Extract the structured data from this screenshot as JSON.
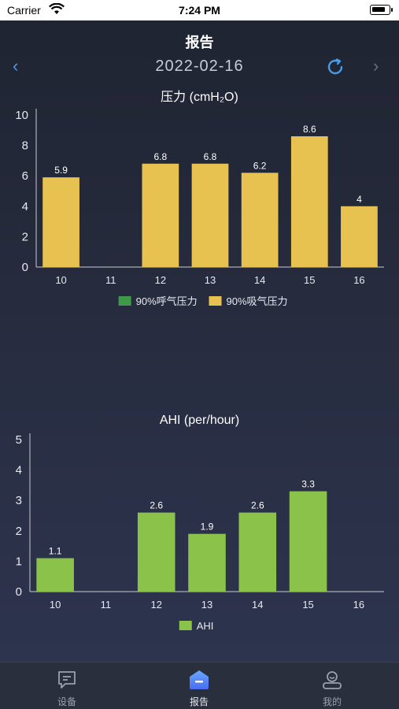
{
  "status_bar": {
    "carrier": "Carrier",
    "time": "7:24 PM"
  },
  "header": {
    "title": "报告",
    "date": "2022-02-16"
  },
  "colors": {
    "accent": "#4a9be8",
    "pressure_exhale": "#3e9a4a",
    "pressure_inhale": "#e8c250",
    "ahi": "#8bc34a"
  },
  "pressure_chart": {
    "chart_data": {
      "type": "bar",
      "title": "压力 (cmH₂O)",
      "categories": [
        "10",
        "11",
        "12",
        "13",
        "14",
        "15",
        "16"
      ],
      "ylim": [
        0,
        10
      ],
      "yticks": [
        "0",
        "2",
        "4",
        "6",
        "8",
        "10"
      ],
      "series": [
        {
          "name": "90%呼气压力",
          "values": [
            null,
            null,
            null,
            null,
            null,
            null,
            null
          ]
        },
        {
          "name": "90%吸气压力",
          "values": [
            5.9,
            null,
            6.8,
            6.8,
            6.2,
            8.6,
            4
          ]
        }
      ],
      "value_labels": [
        "5.9",
        "",
        "6.8",
        "6.8",
        "6.2",
        "8.6",
        "4"
      ],
      "legend": "bottom"
    }
  },
  "ahi_chart": {
    "chart_data": {
      "type": "bar",
      "title": "AHI (per/hour)",
      "categories": [
        "10",
        "11",
        "12",
        "13",
        "14",
        "15",
        "16"
      ],
      "ylim": [
        0,
        5
      ],
      "yticks": [
        "0",
        "1",
        "2",
        "3",
        "4",
        "5"
      ],
      "series": [
        {
          "name": "AHI",
          "values": [
            1.1,
            null,
            2.6,
            1.9,
            2.6,
            3.3,
            null
          ]
        }
      ],
      "value_labels": [
        "1.1",
        "",
        "2.6",
        "1.9",
        "2.6",
        "3.3",
        ""
      ],
      "legend": "bottom"
    }
  },
  "tabs": [
    {
      "label": "设备",
      "icon": "message-icon"
    },
    {
      "label": "报告",
      "icon": "report-icon"
    },
    {
      "label": "我的",
      "icon": "user-icon"
    }
  ]
}
